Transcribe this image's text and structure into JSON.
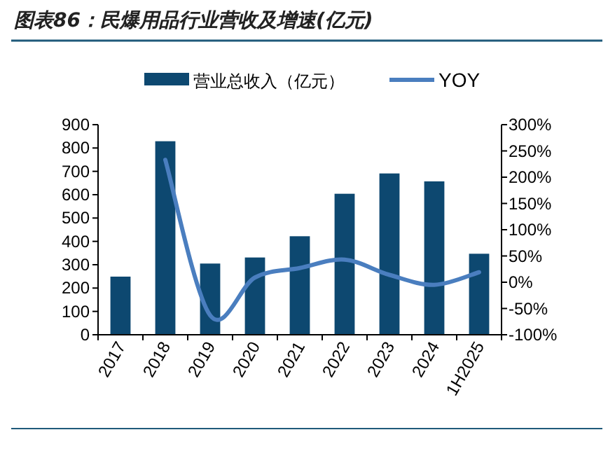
{
  "chart_data": {
    "type": "bar",
    "title": "图表86：民爆用品行业营收及增速(亿元)",
    "categories": [
      "2017",
      "2018",
      "2019",
      "2020",
      "2021",
      "2022",
      "2023",
      "2024",
      "1H2025"
    ],
    "series": [
      {
        "name": "营业总收入（亿元）",
        "color": "#0d4870",
        "values": [
          249,
          829,
          305,
          331,
          422,
          604,
          691,
          657,
          347
        ]
      },
      {
        "name": "YOY",
        "type": "line",
        "axis": "y2",
        "color": "#4a7ebf",
        "values": [
          null,
          233,
          -63,
          9,
          27,
          43,
          14,
          -5,
          19
        ]
      }
    ],
    "ylim": [
      0,
      900
    ],
    "yticks": [
      0,
      100,
      200,
      300,
      400,
      500,
      600,
      700,
      800,
      900
    ],
    "y2lim": [
      -100,
      300
    ],
    "y2ticks": [
      {
        "value": -100,
        "label": "-100%"
      },
      {
        "value": -50,
        "label": "-50%"
      },
      {
        "value": 0,
        "label": "0%"
      },
      {
        "value": 50,
        "label": "50%"
      },
      {
        "value": 100,
        "label": "100%"
      },
      {
        "value": 150,
        "label": "150%"
      },
      {
        "value": 200,
        "label": "200%"
      },
      {
        "value": 250,
        "label": "250%"
      },
      {
        "value": 300,
        "label": "300%"
      }
    ],
    "legend": "top",
    "grid": false
  }
}
